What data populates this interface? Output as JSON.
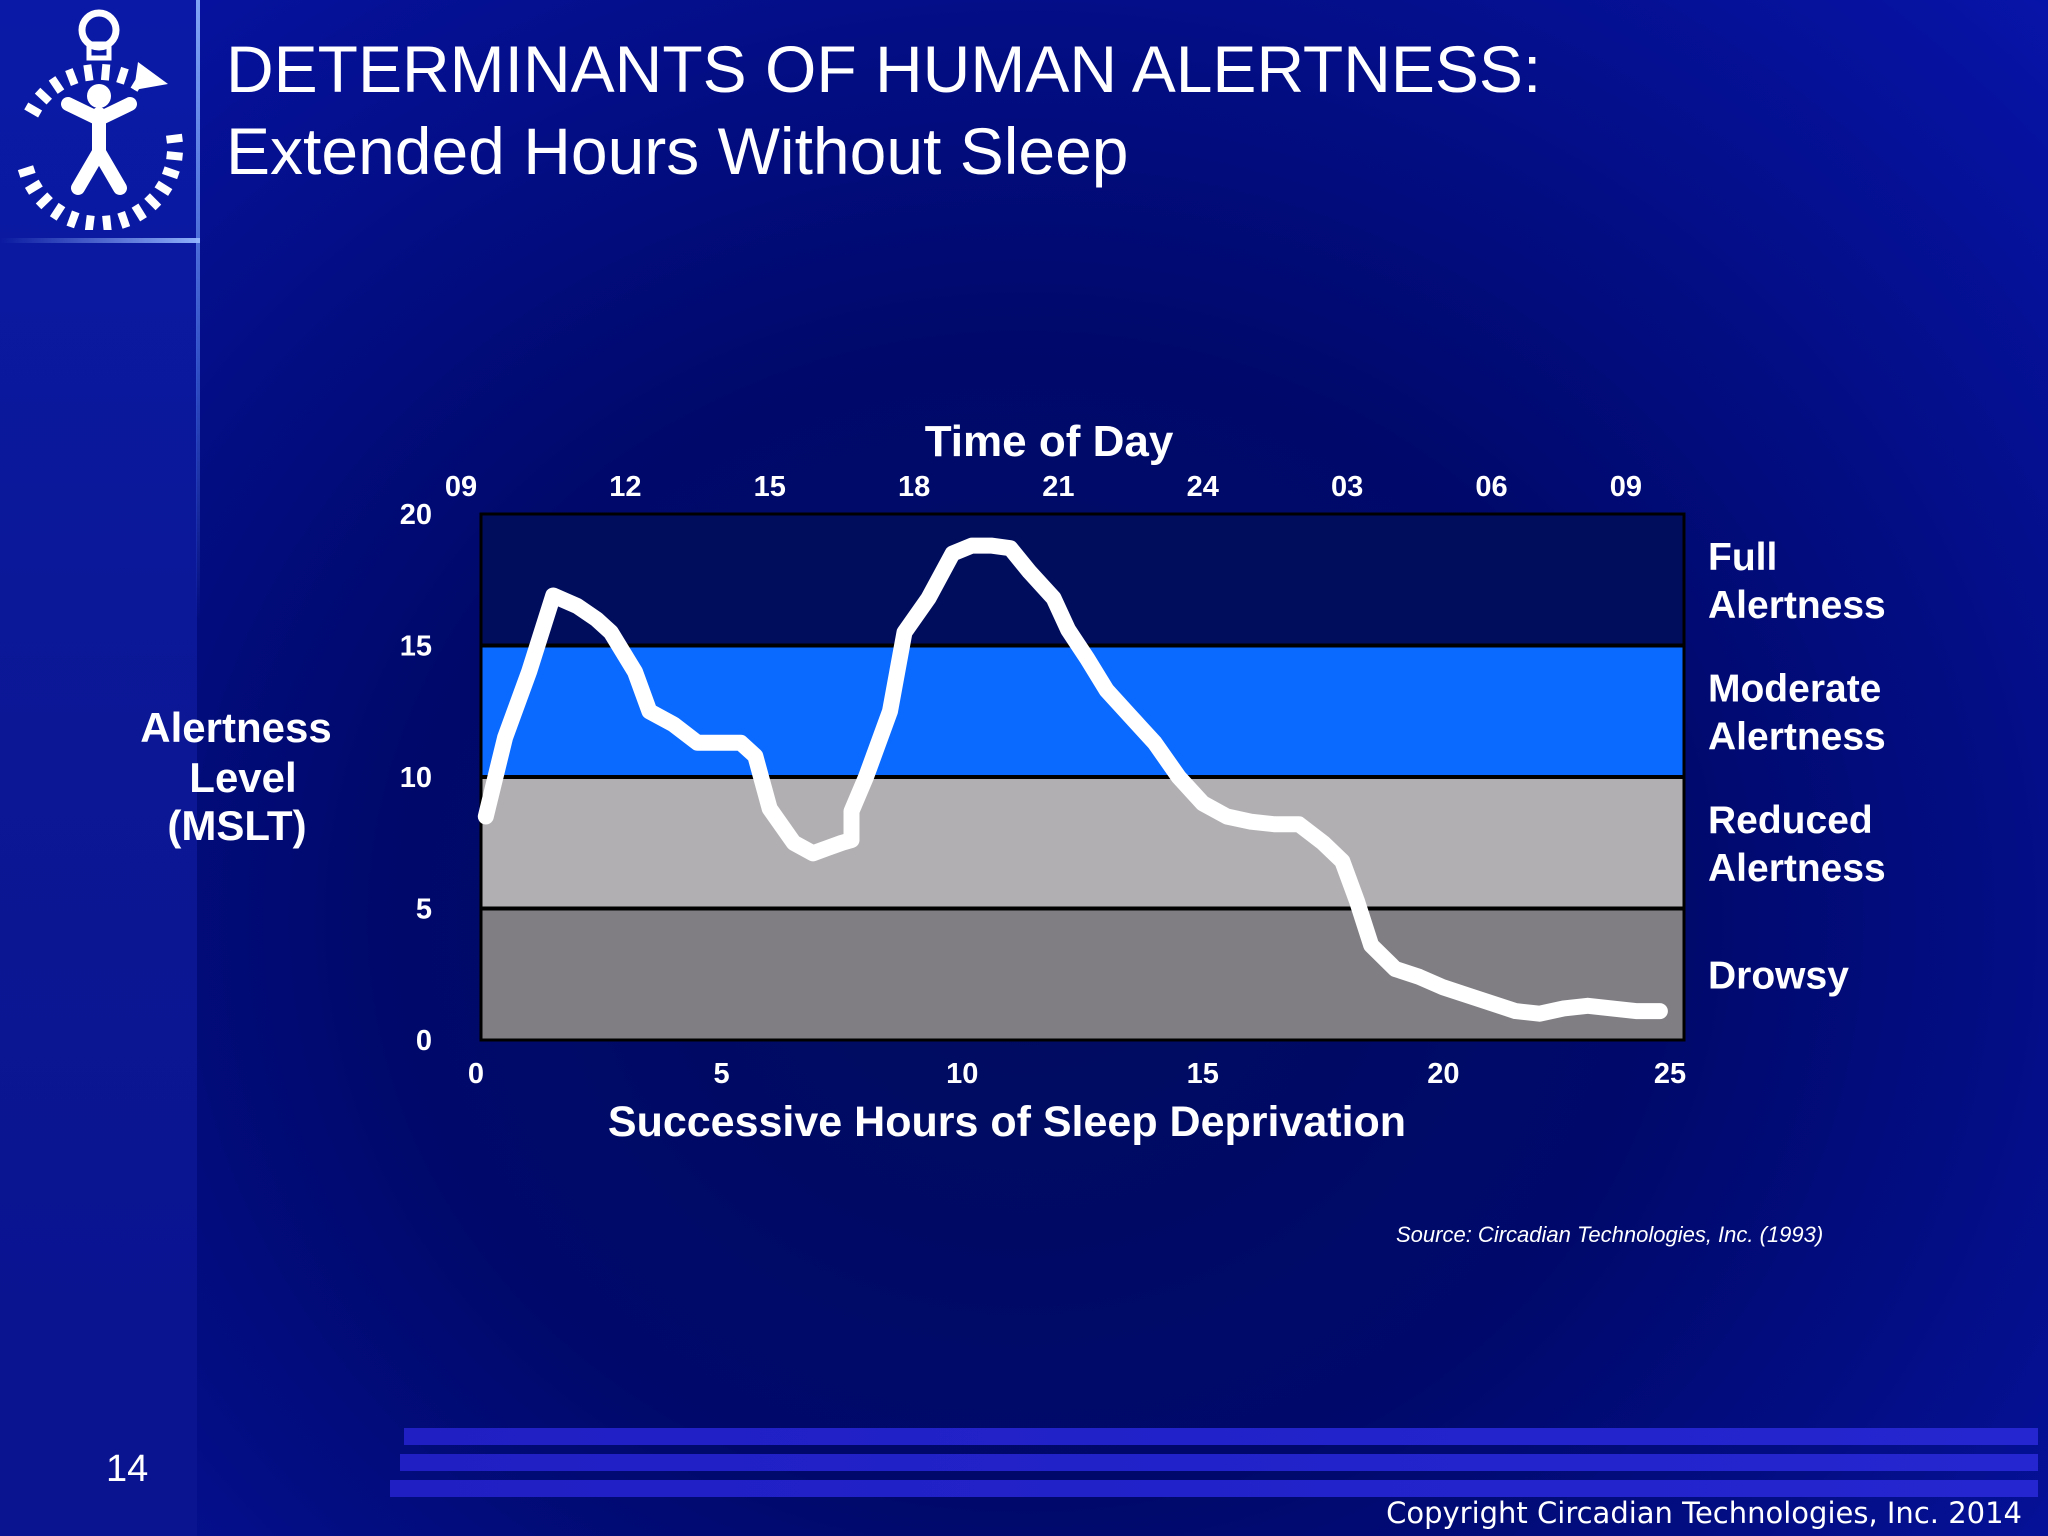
{
  "slide": {
    "title_line1": "DETERMINANTS OF HUMAN ALERTNESS:",
    "title_line2": "Extended Hours Without Sleep",
    "source": "Source: Circadian Technologies, Inc. (1993)",
    "page_number": "14",
    "copyright": "Copyright Circadian Technologies, Inc. 2014",
    "logo_icon": "stopwatch-figure-icon"
  },
  "colors": {
    "background": "#00096b",
    "full_band": "#000d5c",
    "moderate_band": "#0a69ff",
    "reduced_band": "#b1afb2",
    "drowsy_band": "#807e83",
    "line": "#ffffff"
  },
  "chart_data": {
    "type": "line",
    "title": "Time of Day",
    "xlabel": "Successive Hours of Sleep Deprivation",
    "ylabel_lines": [
      "Alertness",
      "Level",
      "(MSLT)"
    ],
    "xlim": [
      0,
      25
    ],
    "ylim": [
      0,
      20
    ],
    "x_ticks": [
      "0",
      "5",
      "10",
      "15",
      "20",
      "25"
    ],
    "y_ticks": [
      "0",
      "5",
      "10",
      "15",
      "20"
    ],
    "time_of_day_ticks": [
      "09",
      "12",
      "15",
      "18",
      "21",
      "24",
      "03",
      "06",
      "09"
    ],
    "time_of_day_positions": [
      0,
      3,
      6,
      9,
      12,
      15,
      18,
      21,
      24
    ],
    "bands": [
      {
        "label_lines": [
          "Full",
          "Alertness"
        ],
        "from": 15,
        "to": 20
      },
      {
        "label_lines": [
          "Moderate",
          "Alertness"
        ],
        "from": 10,
        "to": 15
      },
      {
        "label_lines": [
          "Reduced",
          "Alertness"
        ],
        "from": 5,
        "to": 10
      },
      {
        "label_lines": [
          "Drowsy"
        ],
        "from": 0,
        "to": 5
      }
    ],
    "grid": false,
    "series": [
      {
        "x": [
          0.1,
          0.5,
          1.0,
          1.5,
          2.0,
          2.4,
          2.7,
          3.2,
          3.5,
          4.0,
          4.5,
          5.0,
          5.4,
          5.7,
          6.0,
          6.5,
          6.9,
          7.2,
          7.5,
          7.7,
          7.7,
          8.0,
          8.5,
          8.8,
          9.3,
          9.8,
          10.2,
          10.6,
          11.0,
          11.4,
          11.9,
          12.2,
          12.6,
          13.0,
          13.5,
          14.0,
          14.5,
          15.0,
          15.5,
          16.0,
          16.5,
          17.0,
          17.5,
          17.9,
          18.2,
          18.5,
          19.0,
          19.5,
          20.0,
          20.5,
          21.0,
          21.5,
          22.0,
          22.5,
          23.0,
          23.5,
          24.0,
          24.5
        ],
        "y": [
          8.5,
          11.5,
          14.0,
          16.9,
          16.5,
          16.0,
          15.5,
          14.0,
          12.5,
          12.0,
          11.3,
          11.3,
          11.3,
          10.8,
          8.8,
          7.5,
          7.1,
          7.3,
          7.5,
          7.6,
          8.7,
          10.0,
          12.5,
          15.5,
          16.8,
          18.5,
          18.8,
          18.8,
          18.7,
          17.8,
          16.8,
          15.6,
          14.5,
          13.3,
          12.3,
          11.3,
          10.0,
          9.0,
          8.5,
          8.3,
          8.2,
          8.2,
          7.5,
          6.8,
          5.3,
          3.6,
          2.7,
          2.4,
          2.0,
          1.7,
          1.4,
          1.1,
          1.0,
          1.2,
          1.3,
          1.2,
          1.1,
          1.1
        ]
      }
    ]
  }
}
